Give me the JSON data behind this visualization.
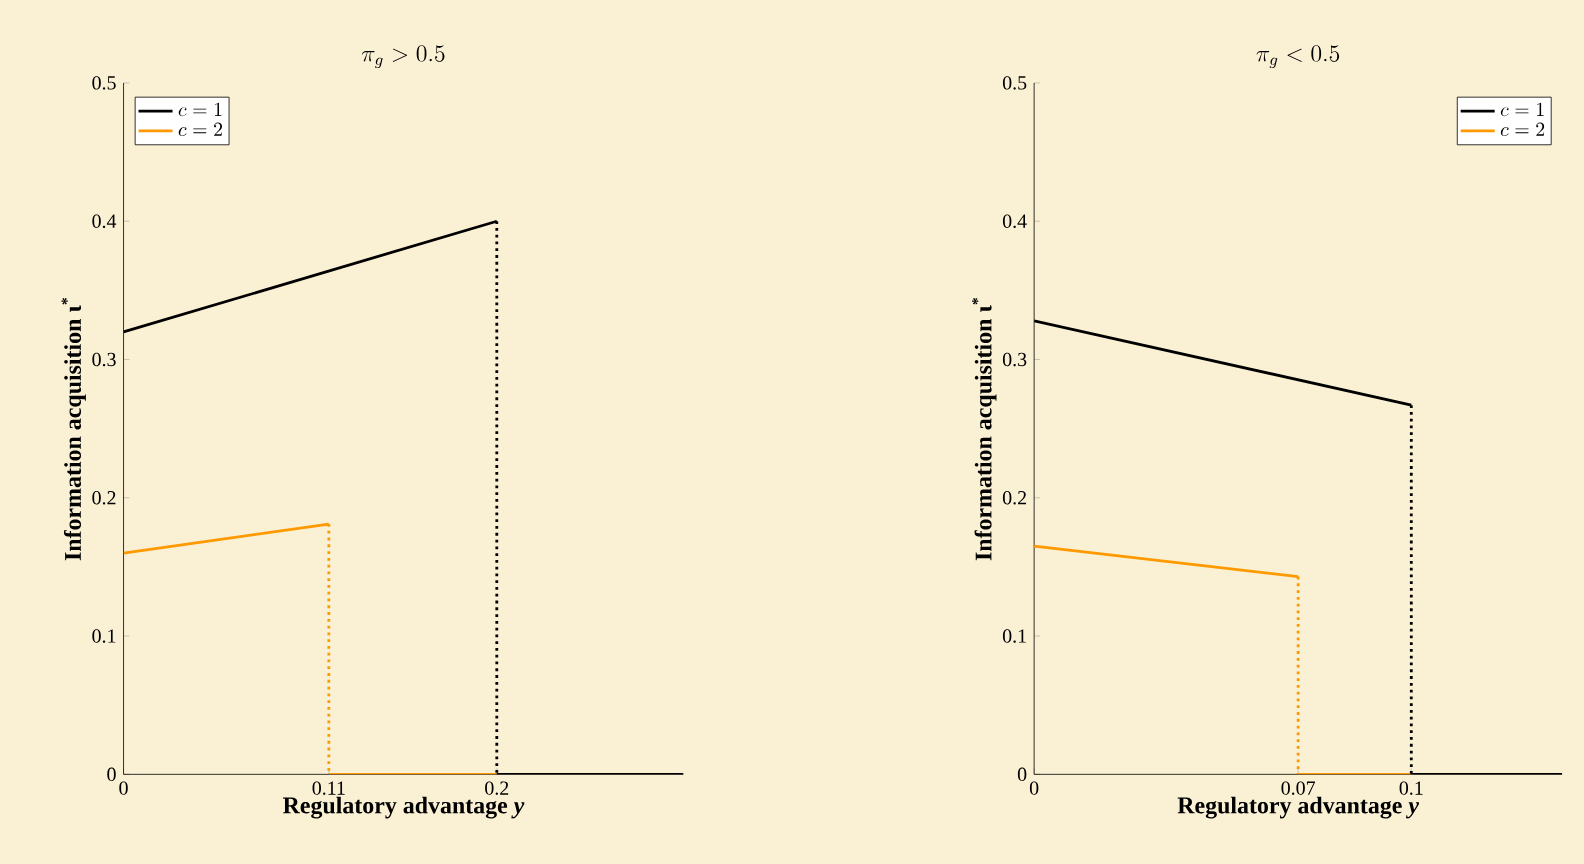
{
  "chart_data": [
    {
      "type": "line",
      "title": "\\pi_g > 0.5",
      "xlabel": "Regulatory advantage *y*",
      "ylabel": "Information acquisition ι$^{*}$",
      "xlim": [
        0,
        0.3
      ],
      "ylim": [
        0,
        0.5
      ],
      "xticks": [
        0,
        0.11,
        0.2
      ],
      "yticks": [
        0,
        0.1,
        0.2,
        0.3,
        0.4,
        0.5
      ],
      "legend": "top left",
      "grid": false,
      "series": [
        {
          "name": "c=1",
          "color": "#000000",
          "line_style": "solid",
          "x": [
            0,
            0.2
          ],
          "values": [
            0.32,
            0.4
          ]
        },
        {
          "name": "c=2",
          "color": "#ff9900",
          "line_style": "solid",
          "x": [
            0,
            0.11
          ],
          "values": [
            0.16,
            0.181
          ]
        },
        {
          "color": "#ff9900",
          "line_style": "dotted",
          "x": [
            0.11,
            0.11
          ],
          "values": [
            0.181,
            0
          ]
        },
        {
          "color": "#ff9900",
          "line_style": "solid",
          "x": [
            0.11,
            0.2
          ],
          "values": [
            0,
            0
          ]
        },
        {
          "color": "#000000",
          "line_style": "dotted",
          "x": [
            0.2,
            0.2
          ],
          "values": [
            0.4,
            0
          ]
        },
        {
          "color": "#000000",
          "line_style": "solid",
          "x": [
            0.2,
            0.3
          ],
          "values": [
            0,
            0
          ]
        }
      ]
    },
    {
      "type": "line",
      "title": "\\pi_g < 0.5",
      "xlabel": "Regulatory advantage *y*",
      "ylabel": "Information acquisition ι$^{*}$",
      "xlim": [
        0,
        0.14
      ],
      "ylim": [
        0,
        0.5
      ],
      "xticks": [
        0,
        0.07,
        0.1
      ],
      "yticks": [
        0,
        0.1,
        0.2,
        0.3,
        0.4,
        0.5
      ],
      "legend": "top right",
      "grid": false,
      "series": [
        {
          "name": "c=1",
          "color": "#000000",
          "line_style": "solid",
          "x": [
            0,
            0.1
          ],
          "values": [
            0.328,
            0.267
          ]
        },
        {
          "name": "c=2",
          "color": "#ff9900",
          "line_style": "solid",
          "x": [
            0,
            0.07
          ],
          "values": [
            0.165,
            0.143
          ]
        },
        {
          "color": "#ff9900",
          "line_style": "dotted",
          "x": [
            0.07,
            0.07
          ],
          "values": [
            0.143,
            0
          ]
        },
        {
          "color": "#ff9900",
          "line_style": "solid",
          "x": [
            0.07,
            0.1
          ],
          "values": [
            0,
            0
          ]
        },
        {
          "color": "#000000",
          "line_style": "dotted",
          "x": [
            0.1,
            0.1
          ],
          "values": [
            0.267,
            0
          ]
        },
        {
          "color": "#000000",
          "line_style": "solid",
          "x": [
            0.1,
            0.14
          ],
          "values": [
            0,
            0
          ]
        }
      ]
    }
  ]
}
